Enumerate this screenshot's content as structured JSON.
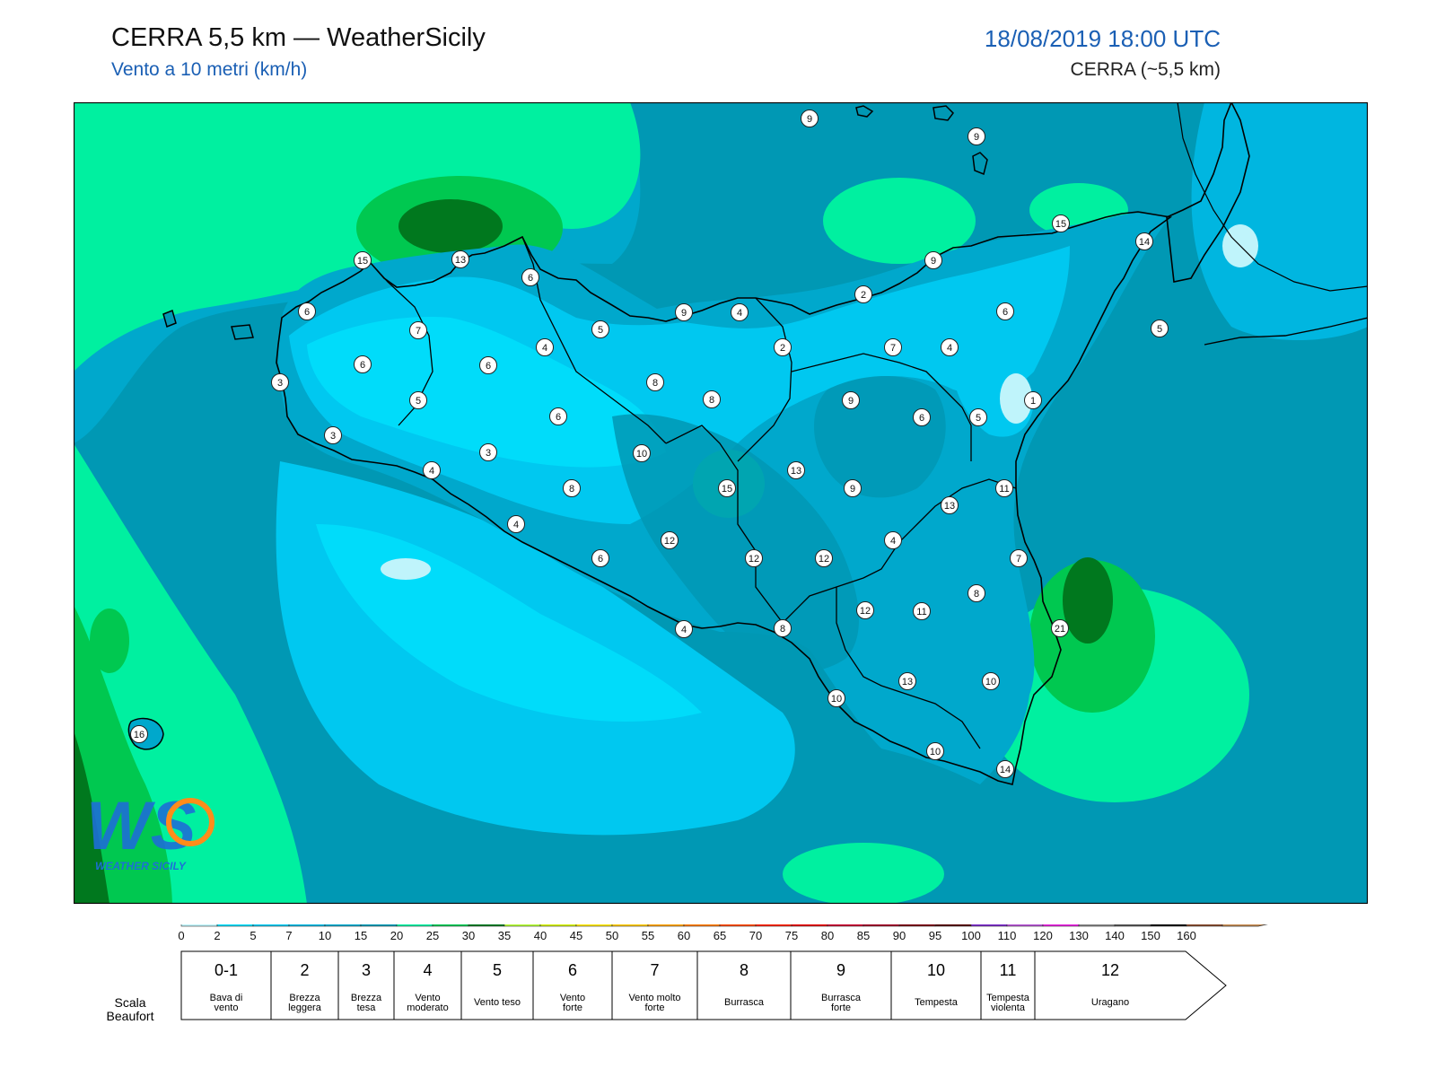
{
  "header": {
    "title": "CERRA 5,5 km — WeatherSicily",
    "subtitle": "Vento a 10 metri (km/h)",
    "datetime": "18/08/2019 18:00 UTC",
    "model": "CERRA (~5,5 km)"
  },
  "logo": {
    "text": "WEATHER SICILY",
    "initials": "WS"
  },
  "stations": [
    {
      "v": "9"
    },
    {
      "v": "9"
    },
    {
      "v": "15"
    },
    {
      "v": "13"
    },
    {
      "v": "14"
    },
    {
      "v": "15"
    },
    {
      "v": "9"
    },
    {
      "v": "6"
    },
    {
      "v": "2"
    },
    {
      "v": "9"
    },
    {
      "v": "4"
    },
    {
      "v": "6"
    },
    {
      "v": "6"
    },
    {
      "v": "7"
    },
    {
      "v": "5"
    },
    {
      "v": "4"
    },
    {
      "v": "2"
    },
    {
      "v": "7"
    },
    {
      "v": "4"
    },
    {
      "v": "3"
    },
    {
      "v": "6"
    },
    {
      "v": "6"
    },
    {
      "v": "3"
    },
    {
      "v": "5"
    },
    {
      "v": "8"
    },
    {
      "v": "8"
    },
    {
      "v": "9"
    },
    {
      "v": "1"
    },
    {
      "v": "6"
    },
    {
      "v": "5"
    },
    {
      "v": "5"
    },
    {
      "v": "6"
    },
    {
      "v": "3"
    },
    {
      "v": "10"
    },
    {
      "v": "4"
    },
    {
      "v": "13"
    },
    {
      "v": "8"
    },
    {
      "v": "15"
    },
    {
      "v": "9"
    },
    {
      "v": "11"
    },
    {
      "v": "13"
    },
    {
      "v": "4"
    },
    {
      "v": "12"
    },
    {
      "v": "12"
    },
    {
      "v": "12"
    },
    {
      "v": "4"
    },
    {
      "v": "7"
    },
    {
      "v": "6"
    },
    {
      "v": "8"
    },
    {
      "v": "12"
    },
    {
      "v": "11"
    },
    {
      "v": "21"
    },
    {
      "v": "4"
    },
    {
      "v": "8"
    },
    {
      "v": "10"
    },
    {
      "v": "13"
    },
    {
      "v": "10"
    },
    {
      "v": "10"
    },
    {
      "v": "14"
    },
    {
      "v": "16"
    }
  ],
  "colorbar": {
    "ticks": [
      "0",
      "2",
      "5",
      "7",
      "10",
      "15",
      "20",
      "25",
      "30",
      "35",
      "40",
      "45",
      "50",
      "55",
      "60",
      "65",
      "70",
      "75",
      "80",
      "85",
      "90",
      "95",
      "100",
      "110",
      "120",
      "130",
      "140",
      "150",
      "160"
    ],
    "colors": [
      "#bff4fb",
      "#00dcfa",
      "#00c8f0",
      "#00b6e0",
      "#00a8cc",
      "#0098b4",
      "#00f0a0",
      "#00c850",
      "#00781e",
      "#b4ff32",
      "#d2f000",
      "#ffe600",
      "#ffc800",
      "#ffa000",
      "#ff7800",
      "#ff4600",
      "#ff1e00",
      "#e60000",
      "#c8002d",
      "#a00023",
      "#78000f",
      "#500000",
      "#7828c8",
      "#b450d2",
      "#e61ede",
      "#828282",
      "#505050",
      "#000000",
      "#824628",
      "#c88c50"
    ]
  },
  "beaufort": {
    "label_line1": "Scala",
    "label_line2": "Beaufort",
    "cells": [
      {
        "num": "0-1",
        "d1": "Bava di",
        "d2": "vento"
      },
      {
        "num": "2",
        "d1": "Brezza",
        "d2": "leggera"
      },
      {
        "num": "3",
        "d1": "Brezza",
        "d2": "tesa"
      },
      {
        "num": "4",
        "d1": "Vento",
        "d2": "moderato"
      },
      {
        "num": "5",
        "d1": "Vento teso",
        "d2": ""
      },
      {
        "num": "6",
        "d1": "Vento",
        "d2": "forte"
      },
      {
        "num": "7",
        "d1": "Vento molto",
        "d2": "forte"
      },
      {
        "num": "8",
        "d1": "Burrasca",
        "d2": ""
      },
      {
        "num": "9",
        "d1": "Burrasca",
        "d2": "forte"
      },
      {
        "num": "10",
        "d1": "Tempesta",
        "d2": ""
      },
      {
        "num": "11",
        "d1": "Tempesta",
        "d2": "violenta"
      },
      {
        "num": "12",
        "d1": "Uragano",
        "d2": ""
      }
    ]
  }
}
